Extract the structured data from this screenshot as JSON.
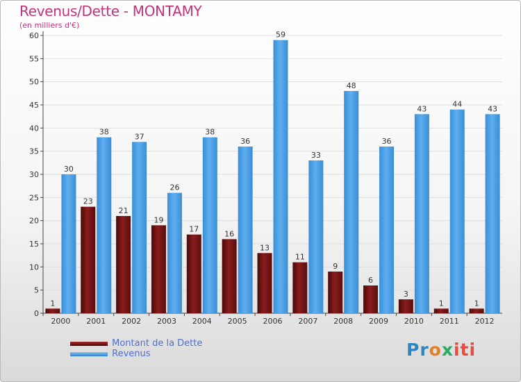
{
  "chart_data": {
    "type": "bar",
    "title": "Revenus/Dette - MONTAMY",
    "subtitle": "(en milliers d'€)",
    "categories": [
      "2000",
      "2001",
      "2002",
      "2003",
      "2004",
      "2005",
      "2006",
      "2007",
      "2008",
      "2009",
      "2010",
      "2011",
      "2012"
    ],
    "series": [
      {
        "name": "Montant de la Dette",
        "color": "#7a1515",
        "values": [
          1,
          23,
          21,
          19,
          17,
          16,
          13,
          11,
          9,
          6,
          3,
          1,
          1
        ]
      },
      {
        "name": "Revenus",
        "color": "#4a9fe0",
        "values": [
          30,
          38,
          37,
          26,
          38,
          36,
          59,
          33,
          48,
          36,
          43,
          44,
          43
        ]
      }
    ],
    "ylim": [
      0,
      60
    ],
    "yticks": [
      0,
      5,
      10,
      15,
      20,
      25,
      30,
      35,
      40,
      45,
      50,
      55,
      60
    ],
    "grid": true,
    "legend_position": "bottom-left"
  },
  "logo": {
    "text": "Proxiti",
    "parts": [
      "Pr",
      "o",
      "x",
      "iti"
    ]
  }
}
